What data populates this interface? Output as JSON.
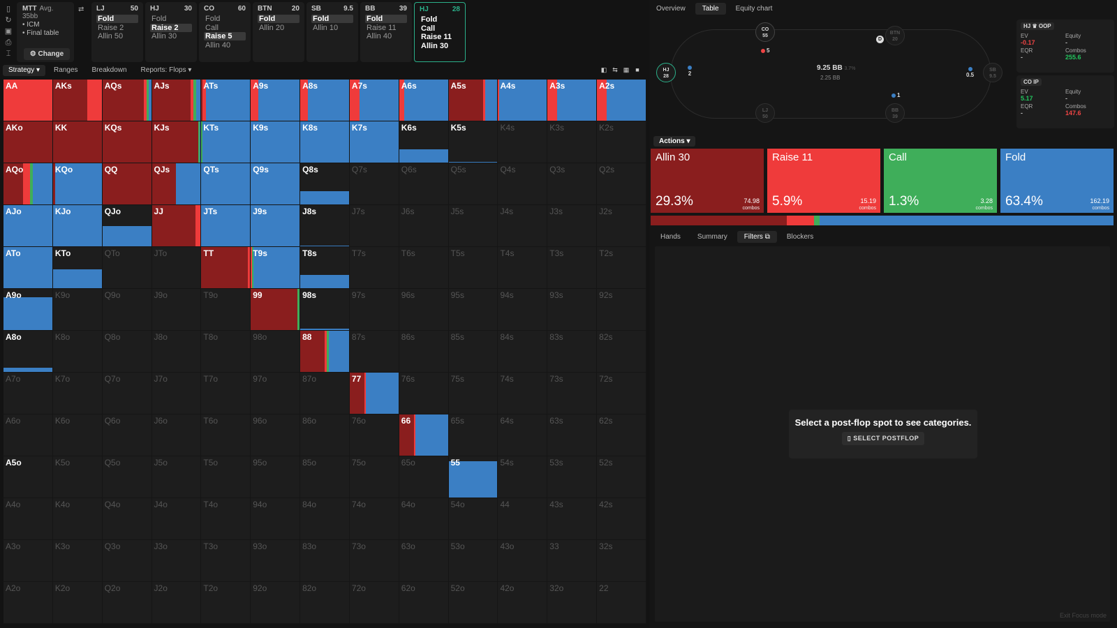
{
  "colors": {
    "allin": "#8a1e1e",
    "raise": "#ef3b3b",
    "call": "#3fae5a",
    "fold": "#3b7fc4"
  },
  "info": {
    "title": "MTT",
    "avg": "Avg. 35bb",
    "line1": "• ICM",
    "line2": "• Final table",
    "change": "Change"
  },
  "positions": [
    {
      "pos": "LJ",
      "stack": "50",
      "opts": [
        "Fold",
        "Raise 2",
        "Allin 50"
      ],
      "sel": 0,
      "active": false
    },
    {
      "pos": "HJ",
      "stack": "30",
      "opts": [
        "Fold",
        "Raise 2",
        "Allin 30"
      ],
      "sel": 1,
      "active": false
    },
    {
      "pos": "CO",
      "stack": "60",
      "opts": [
        "Fold",
        "Call",
        "Raise 5",
        "Allin 40"
      ],
      "sel": 2,
      "active": false
    },
    {
      "pos": "BTN",
      "stack": "20",
      "opts": [
        "Fold",
        "Allin 20"
      ],
      "sel": 0,
      "active": false
    },
    {
      "pos": "SB",
      "stack": "9.5",
      "opts": [
        "Fold",
        "Allin 10"
      ],
      "sel": 0,
      "active": false
    },
    {
      "pos": "BB",
      "stack": "39",
      "opts": [
        "Fold",
        "Raise 11",
        "Allin 40"
      ],
      "sel": 0,
      "active": false
    },
    {
      "pos": "HJ",
      "stack": "28",
      "opts": [
        "Fold",
        "Call",
        "Raise 11",
        "Allin 30"
      ],
      "sel": -1,
      "active": true
    }
  ],
  "ltabs": [
    "Strategy ▾",
    "Ranges",
    "Breakdown",
    "Reports: Flops ▾"
  ],
  "grid": [
    [
      [
        "AA",
        [
          0,
          1,
          0,
          0
        ]
      ],
      [
        "AKs",
        [
          0.7,
          0.3,
          0,
          0
        ]
      ],
      [
        "AQs",
        [
          0.85,
          0.05,
          0.05,
          0.05
        ]
      ],
      [
        "AJs",
        [
          0.8,
          0.05,
          0.06,
          0.09
        ]
      ],
      [
        "ATs",
        [
          0.03,
          0.07,
          0,
          0.9
        ]
      ],
      [
        "A9s",
        [
          0,
          0.15,
          0,
          0.85
        ]
      ],
      [
        "A8s",
        [
          0,
          0.15,
          0,
          0.85
        ]
      ],
      [
        "A7s",
        [
          0,
          0.2,
          0,
          0.8
        ]
      ],
      [
        "A6s",
        [
          0,
          0.1,
          0,
          0.9
        ]
      ],
      [
        "A5s",
        [
          0.7,
          0.05,
          0,
          0.25
        ]
      ],
      [
        "A4s",
        [
          0,
          0.02,
          0,
          0.98
        ]
      ],
      [
        "A3s",
        [
          0,
          0.2,
          0,
          0.8
        ]
      ],
      [
        "A2s",
        [
          0,
          0.2,
          0,
          0.8
        ]
      ]
    ],
    [
      [
        "AKo",
        [
          1,
          0,
          0,
          0
        ]
      ],
      [
        "KK",
        [
          1,
          0,
          0,
          0
        ]
      ],
      [
        "KQs",
        [
          1,
          0,
          0,
          0
        ]
      ],
      [
        "KJs",
        [
          0.95,
          0,
          0.03,
          0.02
        ]
      ],
      [
        "KTs",
        [
          0,
          0,
          0.03,
          0.97
        ]
      ],
      [
        "K9s",
        [
          0,
          0,
          0,
          1
        ]
      ],
      [
        "K8s",
        [
          0,
          0,
          0,
          1
        ]
      ],
      [
        "K7s",
        [
          0,
          0,
          0,
          1
        ]
      ],
      [
        "K6s",
        [
          "b",
          0.33
        ]
      ],
      [
        "K5s",
        [
          "b",
          0.02
        ]
      ],
      [
        "K4s",
        null
      ],
      [
        "K3s",
        null
      ],
      [
        "K2s",
        null
      ]
    ],
    [
      [
        "AQo",
        [
          0.4,
          0.15,
          0.05,
          0.4
        ]
      ],
      [
        "KQo",
        [
          0.05,
          0,
          0,
          0.95
        ]
      ],
      [
        "QQ",
        [
          1,
          0,
          0,
          0
        ]
      ],
      [
        "QJs",
        [
          0.5,
          0,
          0,
          0.5
        ]
      ],
      [
        "QTs",
        [
          0,
          0,
          0,
          1
        ]
      ],
      [
        "Q9s",
        [
          0,
          0,
          0,
          1
        ]
      ],
      [
        "Q8s",
        [
          "b",
          0.33
        ]
      ],
      [
        "Q7s",
        null
      ],
      [
        "Q6s",
        null
      ],
      [
        "Q5s",
        null
      ],
      [
        "Q4s",
        null
      ],
      [
        "Q3s",
        null
      ],
      [
        "Q2s",
        null
      ]
    ],
    [
      [
        "AJo",
        [
          0,
          0,
          0,
          1
        ]
      ],
      [
        "KJo",
        [
          0,
          0,
          0,
          1
        ]
      ],
      [
        "QJo",
        [
          "b",
          0.5
        ]
      ],
      [
        "JJ",
        [
          0.9,
          0.1,
          0,
          0
        ]
      ],
      [
        "JTs",
        [
          0,
          0,
          0,
          1
        ]
      ],
      [
        "J9s",
        [
          0,
          0,
          0,
          1
        ]
      ],
      [
        "J8s",
        [
          "b",
          0.02
        ]
      ],
      [
        "J7s",
        null
      ],
      [
        "J6s",
        null
      ],
      [
        "J5s",
        null
      ],
      [
        "J4s",
        null
      ],
      [
        "J3s",
        null
      ],
      [
        "J2s",
        null
      ]
    ],
    [
      [
        "ATo",
        [
          0,
          0,
          0,
          1
        ]
      ],
      [
        "KTo",
        [
          "b",
          0.45
        ]
      ],
      [
        "QTo",
        null
      ],
      [
        "JTo",
        null
      ],
      [
        "TT",
        [
          0.95,
          0.05,
          0,
          0
        ]
      ],
      [
        "T9s",
        [
          0,
          0.02,
          0.03,
          0.95
        ]
      ],
      [
        "T8s",
        [
          "b",
          0.33
        ]
      ],
      [
        "T7s",
        null
      ],
      [
        "T6s",
        null
      ],
      [
        "T5s",
        null
      ],
      [
        "T4s",
        null
      ],
      [
        "T3s",
        null
      ],
      [
        "T2s",
        null
      ]
    ],
    [
      [
        "A9o",
        [
          "b",
          0.8
        ]
      ],
      [
        "K9o",
        null
      ],
      [
        "Q9o",
        null
      ],
      [
        "J9o",
        null
      ],
      [
        "T9o",
        null
      ],
      [
        "99",
        [
          0.95,
          0,
          0.05,
          0
        ]
      ],
      [
        "98s",
        [
          "b",
          0.04
        ]
      ],
      [
        "97s",
        null
      ],
      [
        "96s",
        null
      ],
      [
        "95s",
        null
      ],
      [
        "94s",
        null
      ],
      [
        "93s",
        null
      ],
      [
        "92s",
        null
      ]
    ],
    [
      [
        "A8o",
        [
          "b",
          0.1
        ]
      ],
      [
        "K8o",
        null
      ],
      [
        "Q8o",
        null
      ],
      [
        "J8o",
        null
      ],
      [
        "T8o",
        null
      ],
      [
        "98o",
        null
      ],
      [
        "88",
        [
          0.5,
          0.05,
          0.03,
          0.42
        ]
      ],
      [
        "87s",
        null
      ],
      [
        "86s",
        null
      ],
      [
        "85s",
        null
      ],
      [
        "84s",
        null
      ],
      [
        "83s",
        null
      ],
      [
        "82s",
        null
      ]
    ],
    [
      [
        "A7o",
        null
      ],
      [
        "K7o",
        null
      ],
      [
        "Q7o",
        null
      ],
      [
        "J7o",
        null
      ],
      [
        "T7o",
        null
      ],
      [
        "97o",
        null
      ],
      [
        "87o",
        null
      ],
      [
        "77",
        [
          0.3,
          0.03,
          0,
          0.67
        ]
      ],
      [
        "76s",
        null
      ],
      [
        "75s",
        null
      ],
      [
        "74s",
        null
      ],
      [
        "73s",
        null
      ],
      [
        "72s",
        null
      ]
    ],
    [
      [
        "A6o",
        null
      ],
      [
        "K6o",
        null
      ],
      [
        "Q6o",
        null
      ],
      [
        "J6o",
        null
      ],
      [
        "T6o",
        null
      ],
      [
        "96o",
        null
      ],
      [
        "86o",
        null
      ],
      [
        "76o",
        null
      ],
      [
        "66",
        [
          0.3,
          0.03,
          0,
          0.67
        ]
      ],
      [
        "65s",
        null
      ],
      [
        "64s",
        null
      ],
      [
        "63s",
        null
      ],
      [
        "62s",
        null
      ]
    ],
    [
      [
        "A5o",
        [
          "e",
          0
        ]
      ],
      [
        "K5o",
        null
      ],
      [
        "Q5o",
        null
      ],
      [
        "J5o",
        null
      ],
      [
        "T5o",
        null
      ],
      [
        "95o",
        null
      ],
      [
        "85o",
        null
      ],
      [
        "75o",
        null
      ],
      [
        "65o",
        null
      ],
      [
        "55",
        [
          "b",
          0.88
        ]
      ],
      [
        "54s",
        null
      ],
      [
        "53s",
        null
      ],
      [
        "52s",
        null
      ]
    ],
    [
      [
        "A4o",
        null
      ],
      [
        "K4o",
        null
      ],
      [
        "Q4o",
        null
      ],
      [
        "J4o",
        null
      ],
      [
        "T4o",
        null
      ],
      [
        "94o",
        null
      ],
      [
        "84o",
        null
      ],
      [
        "74o",
        null
      ],
      [
        "64o",
        null
      ],
      [
        "54o",
        null
      ],
      [
        "44",
        null
      ],
      [
        "43s",
        null
      ],
      [
        "42s",
        null
      ]
    ],
    [
      [
        "A3o",
        null
      ],
      [
        "K3o",
        null
      ],
      [
        "Q3o",
        null
      ],
      [
        "J3o",
        null
      ],
      [
        "T3o",
        null
      ],
      [
        "93o",
        null
      ],
      [
        "83o",
        null
      ],
      [
        "73o",
        null
      ],
      [
        "63o",
        null
      ],
      [
        "53o",
        null
      ],
      [
        "43o",
        null
      ],
      [
        "33",
        null
      ],
      [
        "32s",
        null
      ]
    ],
    [
      [
        "A2o",
        null
      ],
      [
        "K2o",
        null
      ],
      [
        "Q2o",
        null
      ],
      [
        "J2o",
        null
      ],
      [
        "T2o",
        null
      ],
      [
        "92o",
        null
      ],
      [
        "82o",
        null
      ],
      [
        "72o",
        null
      ],
      [
        "62o",
        null
      ],
      [
        "52o",
        null
      ],
      [
        "42o",
        null
      ],
      [
        "32o",
        null
      ],
      [
        "22",
        null
      ]
    ]
  ],
  "rtabs": [
    "Overview",
    "Table",
    "Equity chart"
  ],
  "table": {
    "pot": "9.25 BB",
    "pot_small": "3.7%",
    "pot_sub": "2.25 BB",
    "seats": [
      {
        "name": "CO",
        "stack": "55"
      },
      {
        "name": "BTN",
        "stack": "20"
      },
      {
        "name": "SB",
        "stack": "9.5"
      },
      {
        "name": "BB",
        "stack": "39"
      },
      {
        "name": "LJ",
        "stack": "50"
      },
      {
        "name": "HJ",
        "stack": "28"
      }
    ],
    "chips": {
      "co": "5",
      "hj": "2",
      "sb": "0.5",
      "bb": "1"
    },
    "dealer": "D"
  },
  "stats": [
    {
      "hd": "HJ ♛ OOP",
      "ev_l": "EV",
      "ev": "-0.17",
      "eq_l": "Equity",
      "eq": "-",
      "eqr_l": "EQR",
      "eqr": "-",
      "cb_l": "Combos",
      "cb": "255.6"
    },
    {
      "hd": "CO IP",
      "ev_l": "EV",
      "ev": "5.17",
      "eq_l": "Equity",
      "eq": "-",
      "eqr_l": "EQR",
      "eqr": "-",
      "cb_l": "Combos",
      "cb": "147.6"
    }
  ],
  "actions_label": "Actions ▾",
  "actions": [
    {
      "name": "Allin 30",
      "pct": "29.3%",
      "combos": "74.98",
      "sub": "combos"
    },
    {
      "name": "Raise 11",
      "pct": "5.9%",
      "combos": "15.19",
      "sub": "combos"
    },
    {
      "name": "Call",
      "pct": "1.3%",
      "combos": "3.28",
      "sub": "combos"
    },
    {
      "name": "Fold",
      "pct": "63.4%",
      "combos": "162.19",
      "sub": "combos"
    }
  ],
  "action_bar": [
    29.3,
    5.9,
    1.3,
    63.4
  ],
  "btabs": [
    "Hands",
    "Summary",
    "Filters",
    "Blockers"
  ],
  "msg": "Select a post-flop spot to see categories.",
  "msg_btn": "SELECT POSTFLOP",
  "exit": "Exit Focus mode"
}
